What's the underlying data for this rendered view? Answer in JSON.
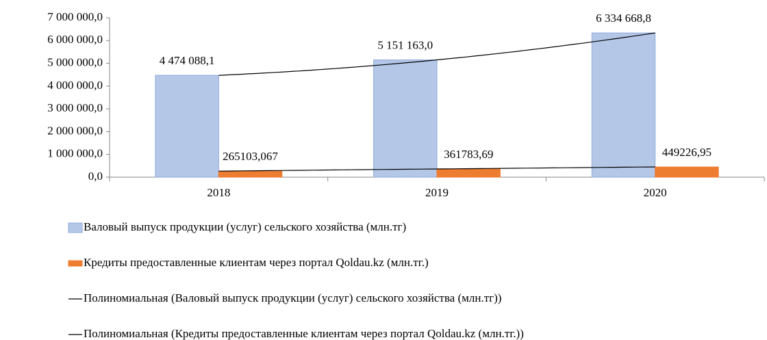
{
  "chart_data": {
    "type": "bar",
    "categories": [
      "2018",
      "2019",
      "2020"
    ],
    "series": [
      {
        "name": "Валовый выпуск продукции (услуг) сельского хозяйства (млн.тг)",
        "color": "#b4c7e7",
        "stroke": "#8faadc",
        "values": [
          4474088.1,
          5151163.0,
          6334668.8
        ],
        "value_labels": [
          "4 474 088,1",
          "5 151 163,0",
          "6 334 668,8"
        ]
      },
      {
        "name": "Кредиты предоставленные клиентам через портал Qoldau.kz (млн.тг.)",
        "color": "#ed7d31",
        "stroke": "#ed7d31",
        "values": [
          265103.067,
          361783.69,
          449226.95
        ],
        "value_labels": [
          "265103,067",
          "361783,69",
          "449226,95"
        ]
      }
    ],
    "trendlines": [
      {
        "name": "Полиномиальная (Валовый выпуск продукции (услуг) сельского хозяйства (млн.тг))",
        "series": 0,
        "color": "#000000"
      },
      {
        "name": "Полиномиальная (Кредиты предоставленные клиентам через портал Qoldau.kz (млн.тг.))",
        "series": 1,
        "color": "#000000"
      }
    ],
    "ylim": [
      0,
      7000000
    ],
    "yticks": [
      {
        "value": 0,
        "label": "0,0"
      },
      {
        "value": 1000000,
        "label": "1 000 000,0"
      },
      {
        "value": 2000000,
        "label": "2 000 000,0"
      },
      {
        "value": 3000000,
        "label": "3 000 000,0"
      },
      {
        "value": 4000000,
        "label": "4 000 000,0"
      },
      {
        "value": 5000000,
        "label": "5 000 000,0"
      },
      {
        "value": 6000000,
        "label": "6 000 000,0"
      },
      {
        "value": 7000000,
        "label": "7 000 000,0"
      }
    ],
    "grid": false,
    "legend": "bottom"
  }
}
